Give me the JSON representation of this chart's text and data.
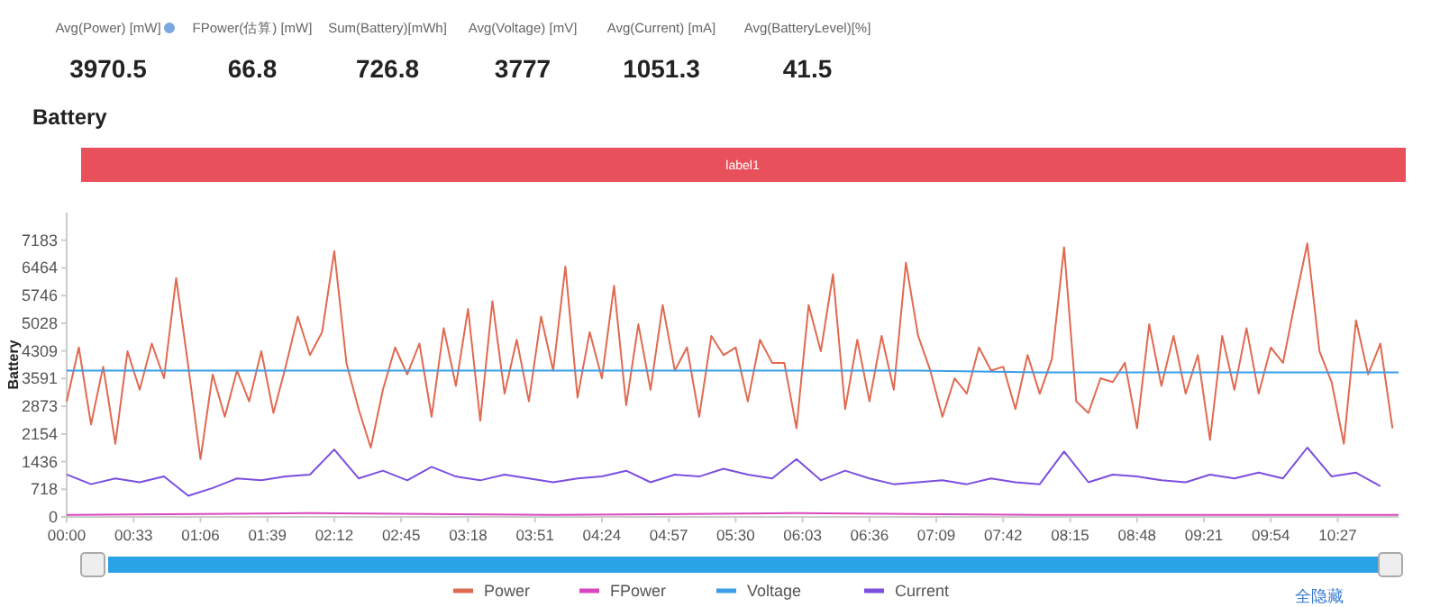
{
  "chart_data": {
    "type": "line",
    "title": "Battery",
    "ylabel": "Battery",
    "annotations": [
      "Avg(Power) [mW]",
      "3970.5",
      "FPower(估算) [mW]",
      "66.8",
      "Sum(Battery)[mWh]",
      "726.8",
      "Avg(Voltage) [mV]",
      "3777",
      "Avg(Current) [mA]",
      "1051.3",
      "Avg(BatteryLevel)[%]",
      "41.5",
      "label1",
      "全隐藏"
    ],
    "xlim": [
      0,
      657
    ],
    "xticks": [
      {
        "value": 0,
        "label": "00:00"
      },
      {
        "value": 33,
        "label": "00:33"
      },
      {
        "value": 66,
        "label": "01:06"
      },
      {
        "value": 99,
        "label": "01:39"
      },
      {
        "value": 132,
        "label": "02:12"
      },
      {
        "value": 165,
        "label": "02:45"
      },
      {
        "value": 198,
        "label": "03:18"
      },
      {
        "value": 231,
        "label": "03:51"
      },
      {
        "value": 264,
        "label": "04:24"
      },
      {
        "value": 297,
        "label": "04:57"
      },
      {
        "value": 330,
        "label": "05:30"
      },
      {
        "value": 363,
        "label": "06:03"
      },
      {
        "value": 396,
        "label": "06:36"
      },
      {
        "value": 429,
        "label": "07:09"
      },
      {
        "value": 462,
        "label": "07:42"
      },
      {
        "value": 495,
        "label": "08:15"
      },
      {
        "value": 528,
        "label": "08:48"
      },
      {
        "value": 561,
        "label": "09:21"
      },
      {
        "value": 594,
        "label": "09:54"
      },
      {
        "value": 627,
        "label": "10:27"
      }
    ],
    "ylim": [
      0,
      7901
    ],
    "yticks": [
      0,
      718,
      1436,
      2154,
      2873,
      3591,
      4309,
      5028,
      5746,
      6464,
      7183
    ],
    "legend": "bottom",
    "series": [
      {
        "name": "Power",
        "color": "#e06a50",
        "x": [
          0,
          6,
          12,
          18,
          24,
          30,
          36,
          42,
          48,
          54,
          60,
          66,
          72,
          78,
          84,
          90,
          96,
          102,
          108,
          114,
          120,
          126,
          132,
          138,
          144,
          150,
          156,
          162,
          168,
          174,
          180,
          186,
          192,
          198,
          204,
          210,
          216,
          222,
          228,
          234,
          240,
          246,
          252,
          258,
          264,
          270,
          276,
          282,
          288,
          294,
          300,
          306,
          312,
          318,
          324,
          330,
          336,
          342,
          348,
          354,
          360,
          366,
          372,
          378,
          384,
          390,
          396,
          402,
          408,
          414,
          420,
          426,
          432,
          438,
          444,
          450,
          456,
          462,
          468,
          474,
          480,
          486,
          492,
          498,
          504,
          510,
          516,
          522,
          528,
          534,
          540,
          546,
          552,
          558,
          564,
          570,
          576,
          582,
          588,
          594,
          600,
          606,
          612,
          618,
          624,
          630,
          636,
          642,
          648,
          654
        ],
        "values": [
          3000,
          4400,
          2400,
          3900,
          1900,
          4300,
          3300,
          4500,
          3600,
          6200,
          3900,
          1500,
          3700,
          2600,
          3800,
          3000,
          4300,
          2700,
          3900,
          5200,
          4200,
          4800,
          6900,
          4000,
          2800,
          1800,
          3300,
          4400,
          3700,
          4500,
          2600,
          4900,
          3400,
          5400,
          2500,
          5600,
          3200,
          4600,
          3000,
          5200,
          3800,
          6500,
          3100,
          4800,
          3600,
          6000,
          2900,
          5000,
          3300,
          5500,
          3800,
          4400,
          2600,
          4700,
          4200,
          4400,
          3000,
          4600,
          4000,
          4000,
          2300,
          5500,
          4300,
          6300,
          2800,
          4600,
          3000,
          4700,
          3300,
          6600,
          4700,
          3800,
          2600,
          3600,
          3200,
          4400,
          3800,
          3900,
          2800,
          4200,
          3200,
          4100,
          7000,
          3000,
          2700,
          3600,
          3500,
          4000,
          2300,
          5000,
          3400,
          4700,
          3200,
          4200,
          2000,
          4700,
          3300,
          4900,
          3200,
          4400,
          4000,
          5600,
          7100,
          4300,
          3500,
          1900,
          5100,
          3700,
          4500,
          2300
        ]
      },
      {
        "name": "FPower",
        "color": "#d946c0",
        "x": [
          0,
          120,
          240,
          360,
          480,
          600,
          657
        ],
        "values": [
          50,
          100,
          50,
          100,
          50,
          50,
          50
        ]
      },
      {
        "name": "Voltage",
        "color": "#3b9ee8",
        "x": [
          0,
          60,
          120,
          180,
          240,
          300,
          360,
          420,
          480,
          540,
          600,
          657
        ],
        "values": [
          3800,
          3800,
          3800,
          3800,
          3800,
          3800,
          3800,
          3800,
          3750,
          3750,
          3750,
          3750
        ]
      },
      {
        "name": "Current",
        "color": "#7b4fe0",
        "x": [
          0,
          12,
          24,
          36,
          48,
          60,
          72,
          84,
          96,
          108,
          120,
          132,
          144,
          156,
          168,
          180,
          192,
          204,
          216,
          228,
          240,
          252,
          264,
          276,
          288,
          300,
          312,
          324,
          336,
          348,
          360,
          372,
          384,
          396,
          408,
          420,
          432,
          444,
          456,
          468,
          480,
          492,
          504,
          516,
          528,
          540,
          552,
          564,
          576,
          588,
          600,
          612,
          624,
          636,
          648
        ],
        "values": [
          1100,
          850,
          1000,
          900,
          1050,
          550,
          750,
          1000,
          950,
          1050,
          1100,
          1750,
          1000,
          1200,
          950,
          1300,
          1050,
          950,
          1100,
          1000,
          900,
          1000,
          1050,
          1200,
          900,
          1100,
          1050,
          1250,
          1100,
          1000,
          1500,
          950,
          1200,
          1000,
          850,
          900,
          950,
          850,
          1000,
          900,
          850,
          1700,
          900,
          1100,
          1050,
          950,
          900,
          1100,
          1000,
          1150,
          1000,
          1800,
          1050,
          1150,
          800
        ]
      }
    ]
  }
}
